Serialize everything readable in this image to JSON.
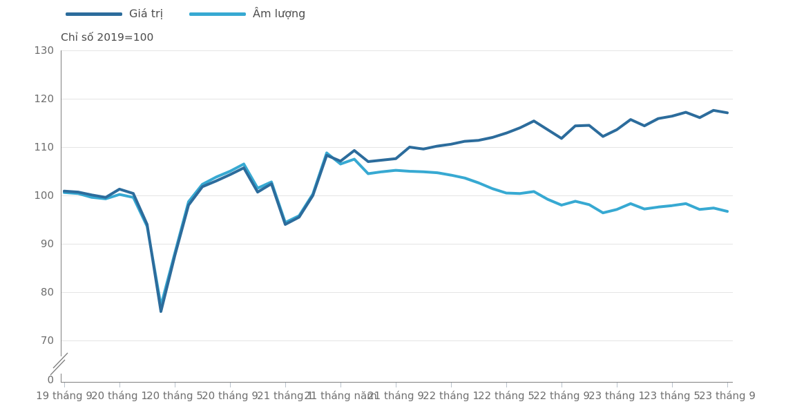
{
  "legend": [
    {
      "label": "Giá trị",
      "color": "#2c6c9c"
    },
    {
      "label": "Âm lượng",
      "color": "#37a9d2"
    }
  ],
  "subtitle": "Chỉ số 2019=100",
  "chart_data": {
    "type": "line",
    "title": "",
    "ylabel": "Chỉ số 2019=100",
    "xlabel": "",
    "ylim_display": [
      70,
      130
    ],
    "axis_break_at_zero": true,
    "grid": "horizontal",
    "legend_position": "top-left",
    "y_tick_labels": [
      "130",
      "120",
      "110",
      "100",
      "90",
      "80",
      "70",
      "0"
    ],
    "x_tick_labels": [
      "19 tháng 9",
      "20 tháng 1",
      "20 tháng 5",
      "20 tháng 9",
      "21 tháng 1",
      "21 tháng năm",
      "21 tháng 9",
      "22 tháng 1",
      "22 tháng 5",
      "22 tháng 9",
      "23 tháng 1",
      "23 tháng 5",
      "23 tháng 9"
    ],
    "x": [
      "2019-09",
      "2019-10",
      "2019-11",
      "2019-12",
      "2020-01",
      "2020-02",
      "2020-03",
      "2020-04",
      "2020-05",
      "2020-06",
      "2020-07",
      "2020-08",
      "2020-09",
      "2020-10",
      "2020-11",
      "2020-12",
      "2021-01",
      "2021-02",
      "2021-03",
      "2021-04",
      "2021-05",
      "2021-06",
      "2021-07",
      "2021-08",
      "2021-09",
      "2021-10",
      "2021-11",
      "2021-12",
      "2022-01",
      "2022-02",
      "2022-03",
      "2022-04",
      "2022-05",
      "2022-06",
      "2022-07",
      "2022-08",
      "2022-09",
      "2022-10",
      "2022-11",
      "2022-12",
      "2023-01",
      "2023-02",
      "2023-03",
      "2023-04",
      "2023-05",
      "2023-06",
      "2023-07",
      "2023-08",
      "2023-09"
    ],
    "series": [
      {
        "name": "Giá trị",
        "color": "#2c6c9c",
        "values": [
          100.9,
          100.7,
          100.1,
          99.6,
          101.3,
          100.4,
          94.0,
          76.0,
          87.5,
          98.0,
          101.8,
          103.0,
          104.3,
          105.7,
          100.7,
          102.4,
          94.0,
          95.5,
          100.0,
          108.3,
          107.1,
          109.3,
          107.0,
          107.3,
          107.6,
          110.0,
          109.6,
          110.2,
          110.6,
          111.2,
          111.4,
          112.0,
          112.9,
          114.0,
          115.4,
          113.6,
          111.8,
          114.4,
          114.5,
          112.2,
          113.6,
          115.7,
          114.4,
          115.9,
          116.4,
          117.2,
          116.1,
          117.6,
          117.1
        ]
      },
      {
        "name": "Âm lượng",
        "color": "#37a9d2",
        "values": [
          100.6,
          100.4,
          99.6,
          99.3,
          100.2,
          99.6,
          93.6,
          77.2,
          88.0,
          98.7,
          102.3,
          103.8,
          105.0,
          106.5,
          101.5,
          102.8,
          94.4,
          95.8,
          100.3,
          108.8,
          106.5,
          107.5,
          104.5,
          104.9,
          105.2,
          105.0,
          104.9,
          104.7,
          104.2,
          103.6,
          102.6,
          101.4,
          100.5,
          100.4,
          100.8,
          99.2,
          98.0,
          98.8,
          98.1,
          96.4,
          97.1,
          98.3,
          97.2,
          97.6,
          97.9,
          98.3,
          97.1,
          97.4,
          96.7
        ]
      }
    ],
    "colors": {
      "gridline": "#e4e4e4",
      "axis": "#7f7f7f",
      "tick": "#b9c2cc"
    }
  }
}
